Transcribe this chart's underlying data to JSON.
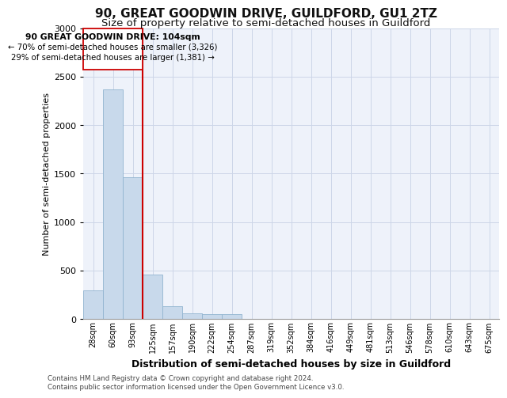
{
  "title1": "90, GREAT GOODWIN DRIVE, GUILDFORD, GU1 2TZ",
  "title2": "Size of property relative to semi-detached houses in Guildford",
  "xlabel": "Distribution of semi-detached houses by size in Guildford",
  "ylabel": "Number of semi-detached properties",
  "footnote": "Contains HM Land Registry data © Crown copyright and database right 2024.\nContains public sector information licensed under the Open Government Licence v3.0.",
  "categories": [
    "28sqm",
    "60sqm",
    "93sqm",
    "125sqm",
    "157sqm",
    "190sqm",
    "222sqm",
    "254sqm",
    "287sqm",
    "319sqm",
    "352sqm",
    "384sqm",
    "416sqm",
    "449sqm",
    "481sqm",
    "513sqm",
    "546sqm",
    "578sqm",
    "610sqm",
    "643sqm",
    "675sqm"
  ],
  "values": [
    290,
    2370,
    1460,
    460,
    130,
    55,
    50,
    50,
    0,
    0,
    0,
    0,
    0,
    0,
    0,
    0,
    0,
    0,
    0,
    0,
    0
  ],
  "bar_color": "#c8d9eb",
  "bar_edge_color": "#92b4d0",
  "ylim": [
    0,
    3000
  ],
  "yticks": [
    0,
    500,
    1000,
    1500,
    2000,
    2500,
    3000
  ],
  "red_line_color": "#cc0000",
  "annotation_title": "90 GREAT GOODWIN DRIVE: 104sqm",
  "annotation_line1": "← 70% of semi-detached houses are smaller (3,326)",
  "annotation_line2": "29% of semi-detached houses are larger (1,381) →",
  "annotation_box_color": "#ffffff",
  "annotation_box_edge": "#cc0000",
  "grid_color": "#ccd6e8",
  "background_color": "#eef2fa",
  "title1_fontsize": 11,
  "title2_fontsize": 9.5
}
